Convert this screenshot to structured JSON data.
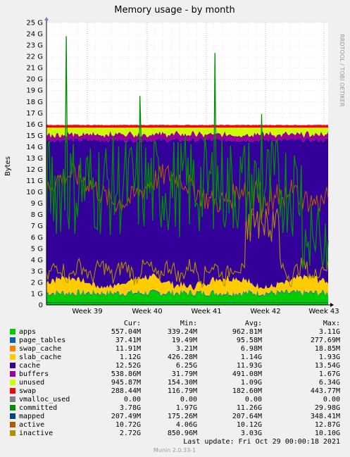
{
  "chart_data": {
    "type": "area",
    "title": "Memory usage - by month",
    "ylabel": "Bytes",
    "watermark": "RRDTOOL / TOBI OETIKER",
    "ylim": [
      0,
      25
    ],
    "y_unit": "G",
    "yticks": [
      "0",
      "1 G",
      "2 G",
      "3 G",
      "4 G",
      "5 G",
      "6 G",
      "7 G",
      "8 G",
      "9 G",
      "10 G",
      "11 G",
      "12 G",
      "13 G",
      "14 G",
      "15 G",
      "16 G",
      "17 G",
      "18 G",
      "19 G",
      "20 G",
      "21 G",
      "22 G",
      "23 G",
      "24 G",
      "25 G"
    ],
    "xticks": [
      "Week 39",
      "Week 40",
      "Week 41",
      "Week 42",
      "Week 43"
    ],
    "grid": true,
    "legend_headers": [
      "Cur:",
      "Min:",
      "Avg:",
      "Max:"
    ],
    "series": [
      {
        "name": "apps",
        "color": "#00cc00",
        "cur": "557.04M",
        "min": "339.24M",
        "avg": "962.81M",
        "max": "3.11G"
      },
      {
        "name": "page_tables",
        "color": "#0066b3",
        "cur": "37.41M",
        "min": "19.49M",
        "avg": "95.58M",
        "max": "277.69M"
      },
      {
        "name": "swap_cache",
        "color": "#ff8000",
        "cur": "11.91M",
        "min": "3.21M",
        "avg": "6.98M",
        "max": "18.85M"
      },
      {
        "name": "slab_cache",
        "color": "#ffcc00",
        "cur": "1.12G",
        "min": "426.28M",
        "avg": "1.14G",
        "max": "1.93G"
      },
      {
        "name": "cache",
        "color": "#330099",
        "cur": "12.52G",
        "min": "6.25G",
        "avg": "11.93G",
        "max": "13.54G"
      },
      {
        "name": "buffers",
        "color": "#990099",
        "cur": "538.86M",
        "min": "31.79M",
        "avg": "491.08M",
        "max": "1.67G"
      },
      {
        "name": "unused",
        "color": "#ccff00",
        "cur": "945.87M",
        "min": "154.30M",
        "avg": "1.09G",
        "max": "6.34G"
      },
      {
        "name": "swap",
        "color": "#ff0000",
        "cur": "288.44M",
        "min": "116.79M",
        "avg": "182.60M",
        "max": "443.77M"
      },
      {
        "name": "vmalloc_used",
        "color": "#808080",
        "cur": "0.00",
        "min": "0.00",
        "avg": "0.00",
        "max": "0.00"
      },
      {
        "name": "committed",
        "color": "#008f00",
        "cur": "3.78G",
        "min": "1.97G",
        "avg": "11.26G",
        "max": "29.98G"
      },
      {
        "name": "mapped",
        "color": "#00487d",
        "cur": "207.49M",
        "min": "175.26M",
        "avg": "207.64M",
        "max": "348.41M"
      },
      {
        "name": "active",
        "color": "#b35a00",
        "cur": "10.72G",
        "min": "4.06G",
        "avg": "10.12G",
        "max": "12.87G"
      },
      {
        "name": "inactive",
        "color": "#b38f00",
        "cur": "2.72G",
        "min": "850.96M",
        "avg": "3.03G",
        "max": "10.10G"
      }
    ]
  },
  "footer": {
    "last_update": "Last update:  Fri Oct 29 00:00:18 2021",
    "version": "Munin 2.0.33-1"
  }
}
